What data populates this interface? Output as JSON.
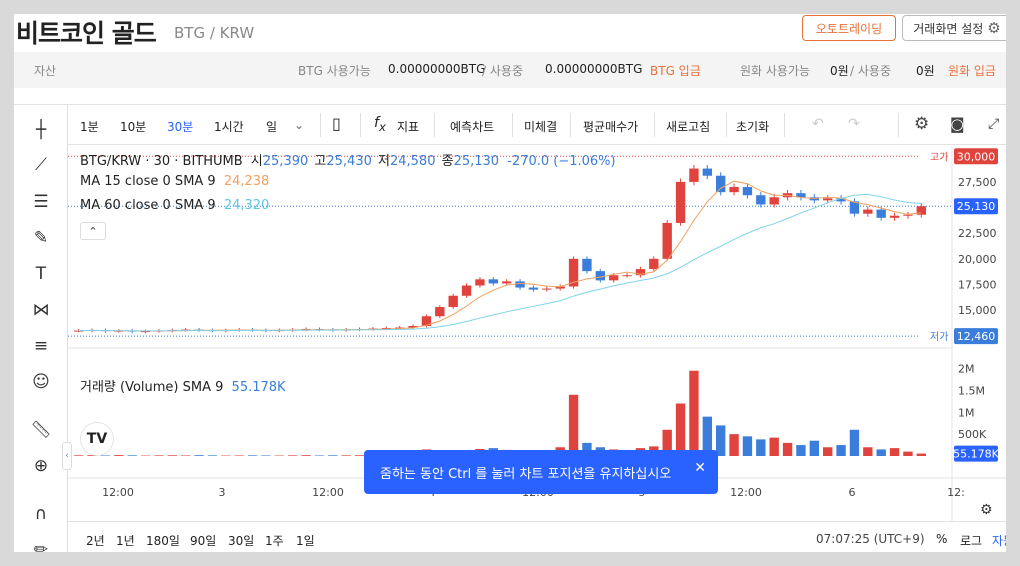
{
  "header": {
    "coin_name": "비트코인 골드",
    "pair": "BTG / KRW",
    "autotrade_label": "오토트레이딩",
    "screen_settings_label": "거래화면 설정"
  },
  "assetbar": {
    "asset_label": "자산",
    "btg_available_label": "BTG 사용가능",
    "btg_available_value": "0.00000000BTG",
    "btg_inuse_label": "/ 사용중",
    "btg_inuse_value": "0.00000000BTG",
    "btg_deposit_label": "BTG 입금",
    "krw_available_label": "원화 사용가능",
    "krw_available_value": "0원",
    "krw_inuse_label": "/ 사용중",
    "krw_inuse_value": "0원",
    "krw_deposit_label": "원화 입금"
  },
  "toolbar": {
    "intervals": [
      "1분",
      "10분",
      "30분",
      "1시간",
      "일"
    ],
    "active_interval": "30분",
    "indicator_label": "지표",
    "forecast_label": "예측차트",
    "unfilled_label": "미체결",
    "avg_price_label": "평균매수가",
    "refresh_label": "새로고침",
    "reset_label": "초기화"
  },
  "legend": {
    "symbol": "BTG/KRW · 30 · BITHUMB",
    "open_label": "시",
    "open": "25,390",
    "high_label": "고",
    "high": "25,430",
    "low_label": "저",
    "low": "24,580",
    "close_label": "종",
    "close": "25,130",
    "change": "-270.0 (−1.06%)",
    "ma15_label": "MA 15 close 0 SMA 9",
    "ma15_value": "24,238",
    "ma60_label": "MA 60 close 0 SMA 9",
    "ma60_value": "24,320",
    "volume_label": "거래량 (Volume) SMA 9",
    "volume_value": "55.178K"
  },
  "markers": {
    "high_marker": "고가",
    "high_value": "30,000",
    "low_marker": "저가",
    "low_value": "12,460",
    "last_value": "25,130",
    "volume_last": "55.178K"
  },
  "colors": {
    "up": "#e0433d",
    "down": "#3b7ddb",
    "ma15": "#f2a15f",
    "ma60": "#7fd3e8",
    "accent": "#e8703a",
    "toast": "#2962ff"
  },
  "toast": {
    "text": "줌하는 동안 Ctrl 를 눌러 차트 포지션을 유지하십시오"
  },
  "bottombar": {
    "ranges": [
      "2년",
      "1년",
      "180일",
      "90일",
      "30일",
      "1주",
      "1일"
    ],
    "time": "07:07:25 (UTC+9)",
    "percent_label": "%",
    "log_label": "로그",
    "auto_label": "자동"
  },
  "chart_data": {
    "type": "candlestick",
    "price_axis_ticks": [
      "27,500",
      "25,000",
      "22,500",
      "20,000",
      "17,500",
      "15,000"
    ],
    "volume_axis_ticks": [
      "2M",
      "1.5M",
      "1M",
      "500K"
    ],
    "time_axis_ticks": [
      "12:00",
      "3",
      "12:00",
      "4",
      "12:00",
      "5",
      "12:00",
      "6",
      "12:"
    ],
    "price_range": [
      11500,
      31000
    ],
    "volume_range": [
      0,
      2150000
    ],
    "close_series": [
      13000,
      13050,
      12950,
      13000,
      12900,
      12950,
      13000,
      13050,
      13100,
      13050,
      13000,
      13050,
      13100,
      13050,
      13000,
      13050,
      13100,
      13150,
      13100,
      13050,
      13100,
      13150,
      13200,
      13250,
      13300,
      13450,
      14400,
      15300,
      16400,
      17400,
      18000,
      17600,
      17800,
      17200,
      17000,
      17100,
      17300,
      20000,
      18800,
      17900,
      18400,
      18400,
      19000,
      20000,
      23500,
      27500,
      28800,
      28100,
      26500,
      27000,
      26200,
      25300,
      26000,
      26400,
      26000,
      25700,
      25900,
      25600,
      24400,
      24800,
      24000,
      24200,
      24300,
      25130
    ],
    "volume_series": [
      15000,
      18000,
      12000,
      20000,
      15000,
      10000,
      14000,
      16000,
      12000,
      18000,
      14000,
      10000,
      12000,
      15000,
      12000,
      10000,
      14000,
      18000,
      12000,
      15000,
      14000,
      16000,
      20000,
      18000,
      30000,
      60000,
      150000,
      80000,
      100000,
      120000,
      160000,
      180000,
      140000,
      100000,
      120000,
      110000,
      200000,
      1400000,
      300000,
      200000,
      150000,
      100000,
      180000,
      220000,
      600000,
      1200000,
      1950000,
      900000,
      700000,
      500000,
      450000,
      380000,
      420000,
      300000,
      250000,
      350000,
      200000,
      250000,
      600000,
      200000,
      150000,
      180000,
      100000,
      55178
    ]
  }
}
